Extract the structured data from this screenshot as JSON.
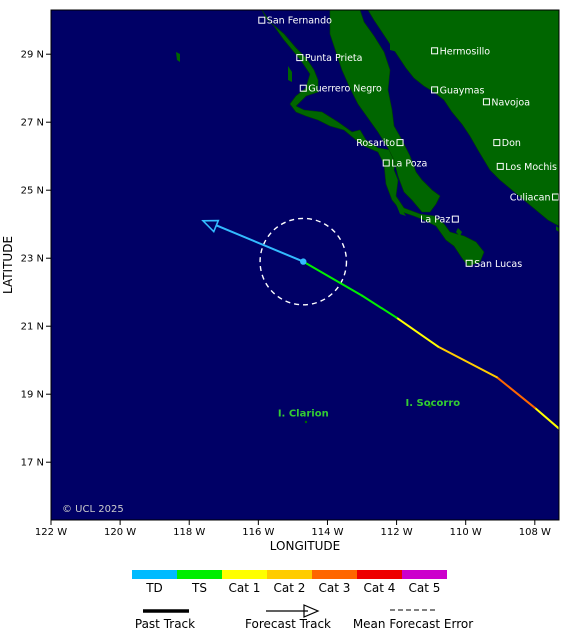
{
  "map": {
    "xlabel": "LONGITUDE",
    "ylabel": "LATITUDE",
    "copyright": "© UCL 2025",
    "lon_ticks": [
      {
        "value": -122,
        "label": "122 W"
      },
      {
        "value": -120,
        "label": "120 W"
      },
      {
        "value": -118,
        "label": "118 W"
      },
      {
        "value": -116,
        "label": "116 W"
      },
      {
        "value": -114,
        "label": "114 W"
      },
      {
        "value": -112,
        "label": "112 W"
      },
      {
        "value": -110,
        "label": "110 W"
      },
      {
        "value": -108,
        "label": "108 W"
      }
    ],
    "lat_ticks": [
      {
        "value": 29,
        "label": "29 N"
      },
      {
        "value": 27,
        "label": "27 N"
      },
      {
        "value": 25,
        "label": "25 N"
      },
      {
        "value": 23,
        "label": "23 N"
      },
      {
        "value": 21,
        "label": "21 N"
      },
      {
        "value": 19,
        "label": "19 N"
      },
      {
        "value": 17,
        "label": "17 N"
      }
    ],
    "cities": [
      {
        "name": "San Fernando",
        "lon": -115.9,
        "lat": 30.0
      },
      {
        "name": "Punta Prieta",
        "lon": -114.8,
        "lat": 28.9
      },
      {
        "name": "Hermosillo",
        "lon": -110.9,
        "lat": 29.1
      },
      {
        "name": "Guerrero Negro",
        "lon": -114.7,
        "lat": 28.0
      },
      {
        "name": "Guaymas",
        "lon": -110.9,
        "lat": 27.95
      },
      {
        "name": "Navojoa",
        "lon": -109.4,
        "lat": 27.6
      },
      {
        "name": "Rosarito",
        "lon": -111.9,
        "lat": 26.4
      },
      {
        "name": "Don",
        "lon": -109.1,
        "lat": 26.4
      },
      {
        "name": "La Poza",
        "lon": -112.3,
        "lat": 25.8
      },
      {
        "name": "Los Mochis",
        "lon": -109.0,
        "lat": 25.7
      },
      {
        "name": "Culiacan",
        "lon": -107.4,
        "lat": 24.8
      },
      {
        "name": "La Paz",
        "lon": -110.3,
        "lat": 24.15
      },
      {
        "name": "San Lucas",
        "lon": -109.9,
        "lat": 22.85
      }
    ],
    "islands": [
      {
        "name": "I. Clarion",
        "lon": -114.7,
        "lat": 18.35
      },
      {
        "name": "I. Socorro",
        "lon": -110.95,
        "lat": 18.65
      }
    ],
    "storm": {
      "current_position": {
        "lon": -114.7,
        "lat": 22.9
      },
      "past_track": [
        {
          "lon": -107.2,
          "lat": 17.9,
          "category": "Cat 1"
        },
        {
          "lon": -108.0,
          "lat": 18.6,
          "category": "Cat 3"
        },
        {
          "lon": -109.1,
          "lat": 19.5,
          "category": "Cat 2"
        },
        {
          "lon": -110.8,
          "lat": 20.4,
          "category": "Cat 1"
        },
        {
          "lon": -112.0,
          "lat": 21.25,
          "category": "TS"
        },
        {
          "lon": -113.0,
          "lat": 21.9,
          "category": "TS"
        },
        {
          "lon": -114.7,
          "lat": 22.9,
          "category": "TD"
        }
      ],
      "forecast_track": [
        {
          "lon": -114.7,
          "lat": 22.9
        },
        {
          "lon": -117.6,
          "lat": 24.1
        }
      ],
      "mean_forecast_error_radius_deg": 1.25
    },
    "colors": {
      "ocean": "#000066",
      "land": "#006600",
      "forecast": "#33bbff"
    }
  },
  "legend": {
    "categories": [
      {
        "label": "TD",
        "color": "#00bbff"
      },
      {
        "label": "TS",
        "color": "#00ee00"
      },
      {
        "label": "Cat 1",
        "color": "#ffff00"
      },
      {
        "label": "Cat 2",
        "color": "#ffcc00"
      },
      {
        "label": "Cat 3",
        "color": "#ff6600"
      },
      {
        "label": "Cat 4",
        "color": "#ee0000"
      },
      {
        "label": "Cat 5",
        "color": "#cc00cc"
      }
    ],
    "past_track_label": "Past Track",
    "forecast_track_label": "Forecast Track",
    "mean_error_label": "Mean Forecast Error"
  }
}
